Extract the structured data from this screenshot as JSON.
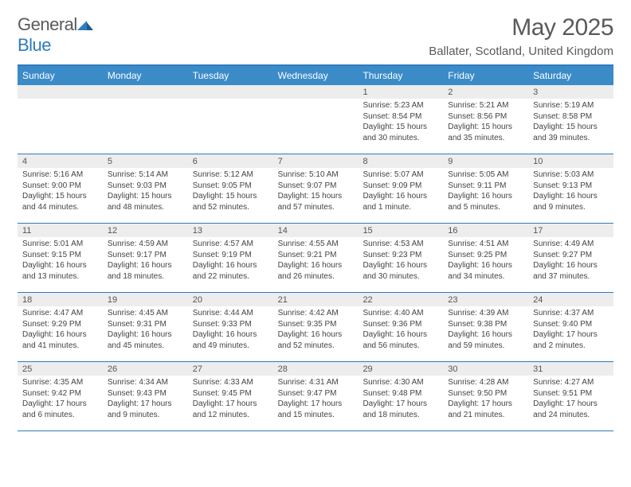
{
  "logo": {
    "text1": "General",
    "text2": "Blue"
  },
  "title": "May 2025",
  "location": "Ballater, Scotland, United Kingdom",
  "colors": {
    "header_bg": "#3b8bc9",
    "border": "#2f7bbf",
    "daynum_bg": "#ededed",
    "text": "#444444",
    "title_text": "#5a5a5a"
  },
  "dayheads": [
    "Sunday",
    "Monday",
    "Tuesday",
    "Wednesday",
    "Thursday",
    "Friday",
    "Saturday"
  ],
  "weeks": [
    [
      {
        "n": "",
        "sr": "",
        "ss": "",
        "dl": ""
      },
      {
        "n": "",
        "sr": "",
        "ss": "",
        "dl": ""
      },
      {
        "n": "",
        "sr": "",
        "ss": "",
        "dl": ""
      },
      {
        "n": "",
        "sr": "",
        "ss": "",
        "dl": ""
      },
      {
        "n": "1",
        "sr": "Sunrise: 5:23 AM",
        "ss": "Sunset: 8:54 PM",
        "dl": "Daylight: 15 hours and 30 minutes."
      },
      {
        "n": "2",
        "sr": "Sunrise: 5:21 AM",
        "ss": "Sunset: 8:56 PM",
        "dl": "Daylight: 15 hours and 35 minutes."
      },
      {
        "n": "3",
        "sr": "Sunrise: 5:19 AM",
        "ss": "Sunset: 8:58 PM",
        "dl": "Daylight: 15 hours and 39 minutes."
      }
    ],
    [
      {
        "n": "4",
        "sr": "Sunrise: 5:16 AM",
        "ss": "Sunset: 9:00 PM",
        "dl": "Daylight: 15 hours and 44 minutes."
      },
      {
        "n": "5",
        "sr": "Sunrise: 5:14 AM",
        "ss": "Sunset: 9:03 PM",
        "dl": "Daylight: 15 hours and 48 minutes."
      },
      {
        "n": "6",
        "sr": "Sunrise: 5:12 AM",
        "ss": "Sunset: 9:05 PM",
        "dl": "Daylight: 15 hours and 52 minutes."
      },
      {
        "n": "7",
        "sr": "Sunrise: 5:10 AM",
        "ss": "Sunset: 9:07 PM",
        "dl": "Daylight: 15 hours and 57 minutes."
      },
      {
        "n": "8",
        "sr": "Sunrise: 5:07 AM",
        "ss": "Sunset: 9:09 PM",
        "dl": "Daylight: 16 hours and 1 minute."
      },
      {
        "n": "9",
        "sr": "Sunrise: 5:05 AM",
        "ss": "Sunset: 9:11 PM",
        "dl": "Daylight: 16 hours and 5 minutes."
      },
      {
        "n": "10",
        "sr": "Sunrise: 5:03 AM",
        "ss": "Sunset: 9:13 PM",
        "dl": "Daylight: 16 hours and 9 minutes."
      }
    ],
    [
      {
        "n": "11",
        "sr": "Sunrise: 5:01 AM",
        "ss": "Sunset: 9:15 PM",
        "dl": "Daylight: 16 hours and 13 minutes."
      },
      {
        "n": "12",
        "sr": "Sunrise: 4:59 AM",
        "ss": "Sunset: 9:17 PM",
        "dl": "Daylight: 16 hours and 18 minutes."
      },
      {
        "n": "13",
        "sr": "Sunrise: 4:57 AM",
        "ss": "Sunset: 9:19 PM",
        "dl": "Daylight: 16 hours and 22 minutes."
      },
      {
        "n": "14",
        "sr": "Sunrise: 4:55 AM",
        "ss": "Sunset: 9:21 PM",
        "dl": "Daylight: 16 hours and 26 minutes."
      },
      {
        "n": "15",
        "sr": "Sunrise: 4:53 AM",
        "ss": "Sunset: 9:23 PM",
        "dl": "Daylight: 16 hours and 30 minutes."
      },
      {
        "n": "16",
        "sr": "Sunrise: 4:51 AM",
        "ss": "Sunset: 9:25 PM",
        "dl": "Daylight: 16 hours and 34 minutes."
      },
      {
        "n": "17",
        "sr": "Sunrise: 4:49 AM",
        "ss": "Sunset: 9:27 PM",
        "dl": "Daylight: 16 hours and 37 minutes."
      }
    ],
    [
      {
        "n": "18",
        "sr": "Sunrise: 4:47 AM",
        "ss": "Sunset: 9:29 PM",
        "dl": "Daylight: 16 hours and 41 minutes."
      },
      {
        "n": "19",
        "sr": "Sunrise: 4:45 AM",
        "ss": "Sunset: 9:31 PM",
        "dl": "Daylight: 16 hours and 45 minutes."
      },
      {
        "n": "20",
        "sr": "Sunrise: 4:44 AM",
        "ss": "Sunset: 9:33 PM",
        "dl": "Daylight: 16 hours and 49 minutes."
      },
      {
        "n": "21",
        "sr": "Sunrise: 4:42 AM",
        "ss": "Sunset: 9:35 PM",
        "dl": "Daylight: 16 hours and 52 minutes."
      },
      {
        "n": "22",
        "sr": "Sunrise: 4:40 AM",
        "ss": "Sunset: 9:36 PM",
        "dl": "Daylight: 16 hours and 56 minutes."
      },
      {
        "n": "23",
        "sr": "Sunrise: 4:39 AM",
        "ss": "Sunset: 9:38 PM",
        "dl": "Daylight: 16 hours and 59 minutes."
      },
      {
        "n": "24",
        "sr": "Sunrise: 4:37 AM",
        "ss": "Sunset: 9:40 PM",
        "dl": "Daylight: 17 hours and 2 minutes."
      }
    ],
    [
      {
        "n": "25",
        "sr": "Sunrise: 4:35 AM",
        "ss": "Sunset: 9:42 PM",
        "dl": "Daylight: 17 hours and 6 minutes."
      },
      {
        "n": "26",
        "sr": "Sunrise: 4:34 AM",
        "ss": "Sunset: 9:43 PM",
        "dl": "Daylight: 17 hours and 9 minutes."
      },
      {
        "n": "27",
        "sr": "Sunrise: 4:33 AM",
        "ss": "Sunset: 9:45 PM",
        "dl": "Daylight: 17 hours and 12 minutes."
      },
      {
        "n": "28",
        "sr": "Sunrise: 4:31 AM",
        "ss": "Sunset: 9:47 PM",
        "dl": "Daylight: 17 hours and 15 minutes."
      },
      {
        "n": "29",
        "sr": "Sunrise: 4:30 AM",
        "ss": "Sunset: 9:48 PM",
        "dl": "Daylight: 17 hours and 18 minutes."
      },
      {
        "n": "30",
        "sr": "Sunrise: 4:28 AM",
        "ss": "Sunset: 9:50 PM",
        "dl": "Daylight: 17 hours and 21 minutes."
      },
      {
        "n": "31",
        "sr": "Sunrise: 4:27 AM",
        "ss": "Sunset: 9:51 PM",
        "dl": "Daylight: 17 hours and 24 minutes."
      }
    ]
  ]
}
